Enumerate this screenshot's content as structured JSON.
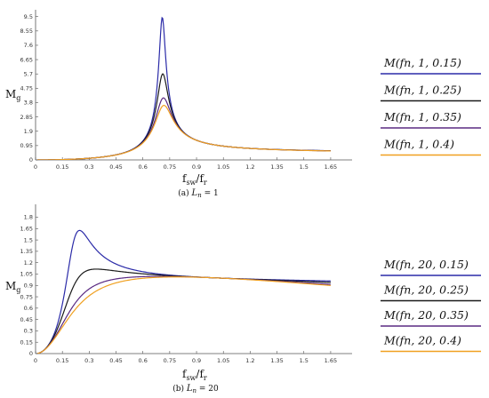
{
  "colors": {
    "series": [
      "#2b2ba8",
      "#1a1a1a",
      "#5a2a82",
      "#f0a020"
    ],
    "axis": "#555555"
  },
  "chart_data": [
    {
      "type": "line",
      "panel": "a",
      "caption_prefix": "(a)",
      "caption_var": "L",
      "caption_sub": "n",
      "caption_value": "= 1",
      "ylabel_main": "M",
      "ylabel_sub": "g",
      "xlabel_main": "f",
      "xlabel_sub": "sw",
      "xlabel_slash": "/",
      "xlabel_main2": "f",
      "xlabel_sub2": "r",
      "xlim": [
        0,
        1.72
      ],
      "ylim": [
        0,
        9.6
      ],
      "x_ticks": [
        "0",
        "0.15",
        "0.3",
        "0.45",
        "0.6",
        "0.75",
        "0.9",
        "1.05",
        "1.2",
        "1.35",
        "1.5",
        "1.65"
      ],
      "y_ticks": [
        "0",
        "0.95",
        "1.9",
        "2.85",
        "3.8",
        "4.75",
        "5.7",
        "6.65",
        "7.6",
        "8.55",
        "9.5"
      ],
      "Ln": 1,
      "series": [
        {
          "name": "M(fn, 1, 0.15)",
          "Q": 0.15,
          "peak_x": 0.707,
          "peak_y": 9.4
        },
        {
          "name": "M(fn, 1, 0.25)",
          "Q": 0.25,
          "peak_x": 0.707,
          "peak_y": 5.7
        },
        {
          "name": "M(fn, 1, 0.35)",
          "Q": 0.35,
          "peak_x": 0.707,
          "peak_y": 4.1
        },
        {
          "name": "M(fn, 1, 0.4)",
          "Q": 0.4,
          "peak_x": 0.707,
          "peak_y": 3.6
        }
      ]
    },
    {
      "type": "line",
      "panel": "b",
      "caption_prefix": "(b)",
      "caption_var": "L",
      "caption_sub": "n",
      "caption_value": "= 20",
      "ylabel_main": "M",
      "ylabel_sub": "g",
      "xlabel_main": "f",
      "xlabel_sub": "sw",
      "xlabel_slash": "/",
      "xlabel_main2": "f",
      "xlabel_sub2": "r",
      "xlim": [
        0,
        1.72
      ],
      "ylim": [
        0,
        1.9
      ],
      "x_ticks": [
        "0",
        "0.15",
        "0.3",
        "0.45",
        "0.6",
        "0.75",
        "0.9",
        "1.05",
        "1.2",
        "1.35",
        "1.5",
        "1.65"
      ],
      "y_ticks": [
        "0",
        "0.15",
        "0.3",
        "0.45",
        "0.6",
        "0.75",
        "0.9",
        "1.05",
        "1.2",
        "1.35",
        "1.5",
        "1.65",
        "1.8"
      ],
      "Ln": 20,
      "series": [
        {
          "name": "M(fn, 20, 0.15)",
          "Q": 0.15,
          "peak_x": 0.23,
          "peak_y": 1.62
        },
        {
          "name": "M(fn, 20, 0.25)",
          "Q": 0.25,
          "peak_x": 0.33,
          "peak_y": 1.1
        },
        {
          "name": "M(fn, 20, 0.35)",
          "Q": 0.35,
          "peak_x": 0.8,
          "peak_y": 1.01
        },
        {
          "name": "M(fn, 20, 0.4)",
          "Q": 0.4,
          "peak_x": 0.85,
          "peak_y": 1.0
        }
      ]
    }
  ]
}
